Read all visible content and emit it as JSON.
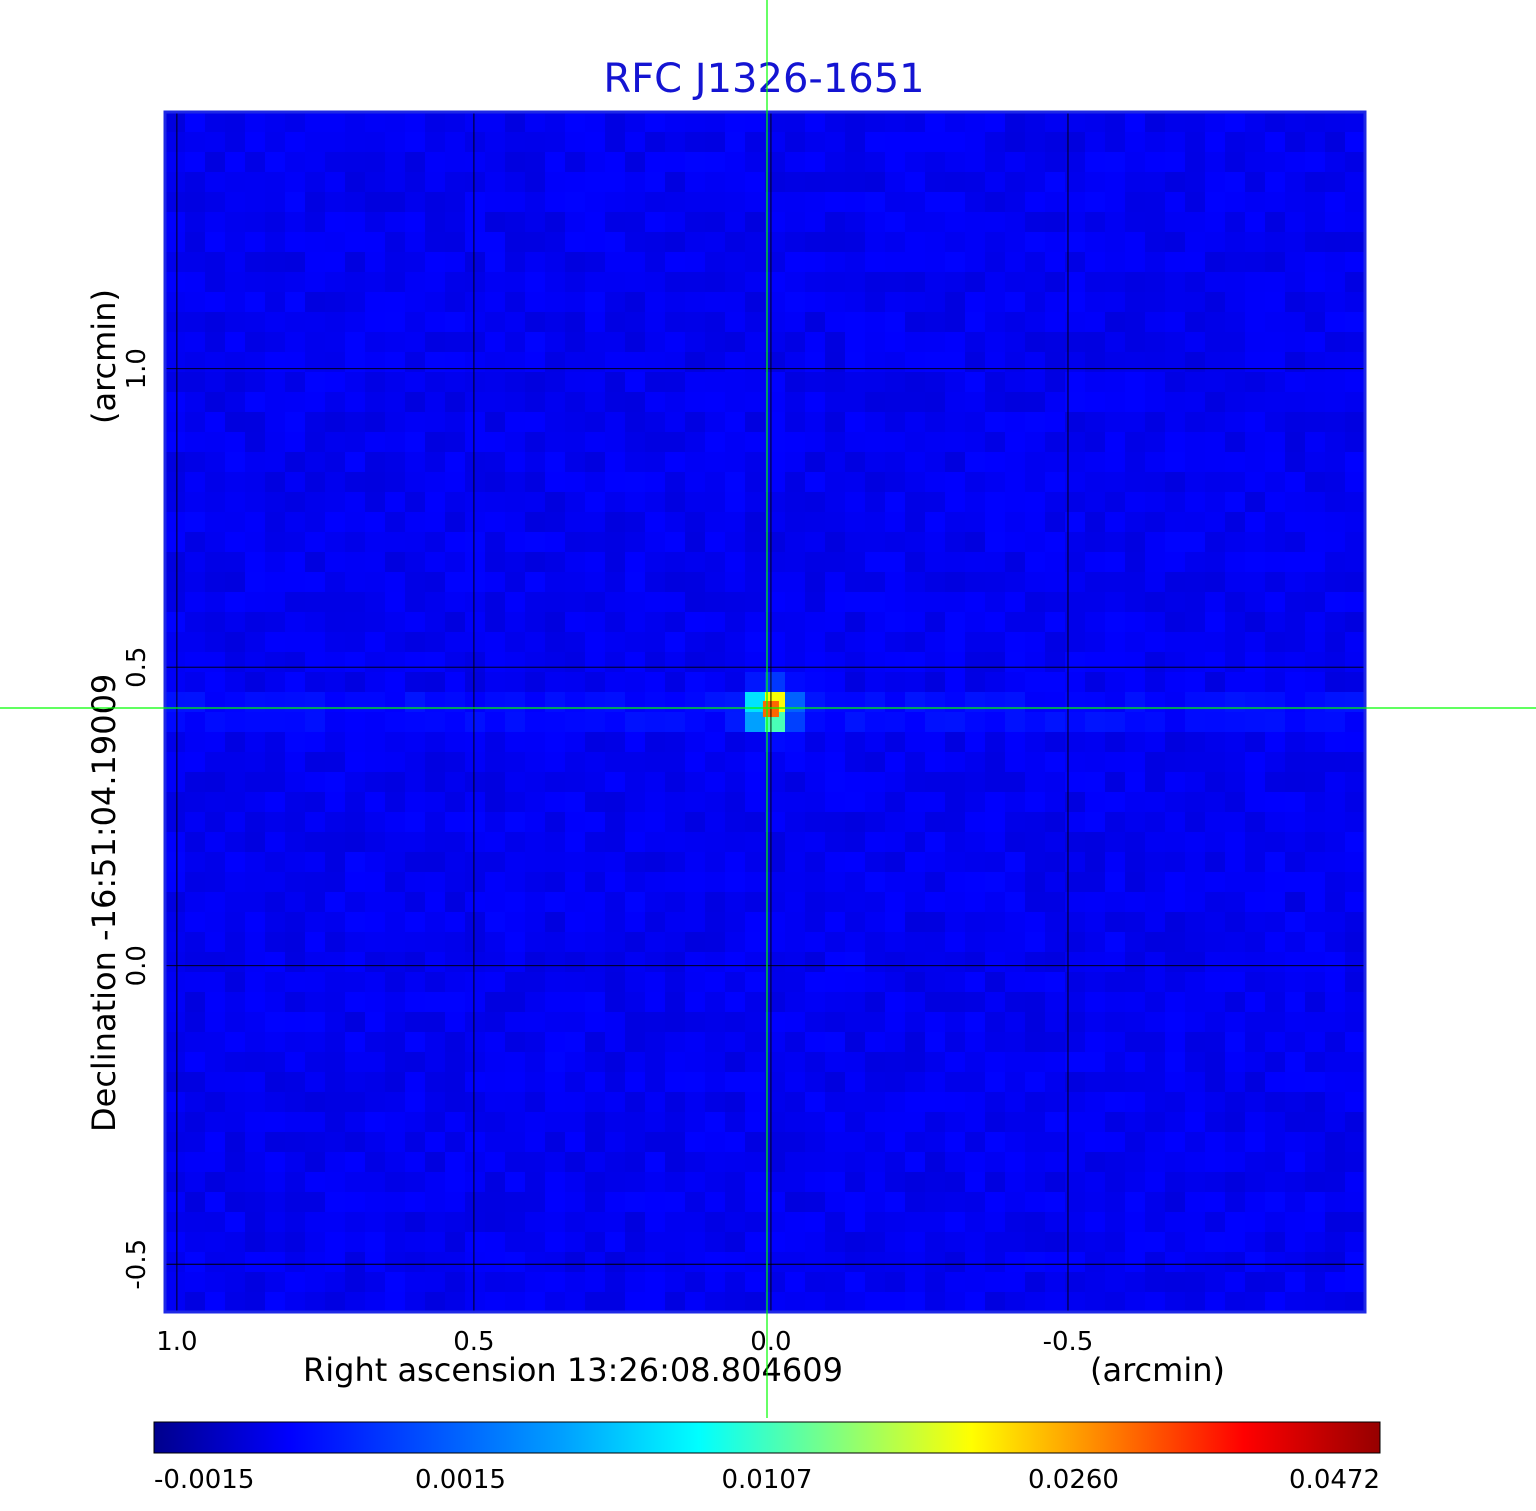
{
  "chart_data": {
    "type": "heatmap",
    "title": "RFC J1326-1651",
    "colors": {
      "title": "#1414d2",
      "frame": "#1e28e6",
      "background_map": "#1e6ef0",
      "grid": "#000000",
      "crosshair": "#00ff00"
    },
    "x_axis": {
      "label": "Right ascension  13:26:08.804609",
      "unit_label": "(arcmin)",
      "range": [
        1.02,
        -1.0
      ],
      "ticks": [
        {
          "value": 1.0,
          "label": "1.0"
        },
        {
          "value": 0.5,
          "label": "0.5"
        },
        {
          "value": 0.0,
          "label": "0.0"
        },
        {
          "value": -0.5,
          "label": "-0.5"
        }
      ]
    },
    "y_axis": {
      "label": "Declination  -16:51:04.19009",
      "unit_label": "(arcmin)",
      "range": [
        -0.58,
        1.43
      ],
      "ticks": [
        {
          "value": 1.0,
          "label": "1.0"
        },
        {
          "value": 0.5,
          "label": "0.5"
        },
        {
          "value": 0.0,
          "label": "0.0"
        },
        {
          "value": -0.5,
          "label": "-0.5"
        }
      ]
    },
    "grid": true,
    "source": {
      "x": 0.0,
      "y": 0.43,
      "peak": 0.0472
    },
    "colorbar": {
      "orientation": "horizontal",
      "placement": "bottom",
      "min": -0.0015,
      "max": 0.0472,
      "tick_labels": [
        "-0.0015",
        "0.0015",
        "0.0107",
        "0.0260",
        "0.0472"
      ],
      "colormap": [
        "#00008c",
        "#0000ff",
        "#0050ff",
        "#00a0ff",
        "#00ffff",
        "#80ff80",
        "#ffff00",
        "#ff8000",
        "#ff0000",
        "#960000"
      ]
    }
  }
}
